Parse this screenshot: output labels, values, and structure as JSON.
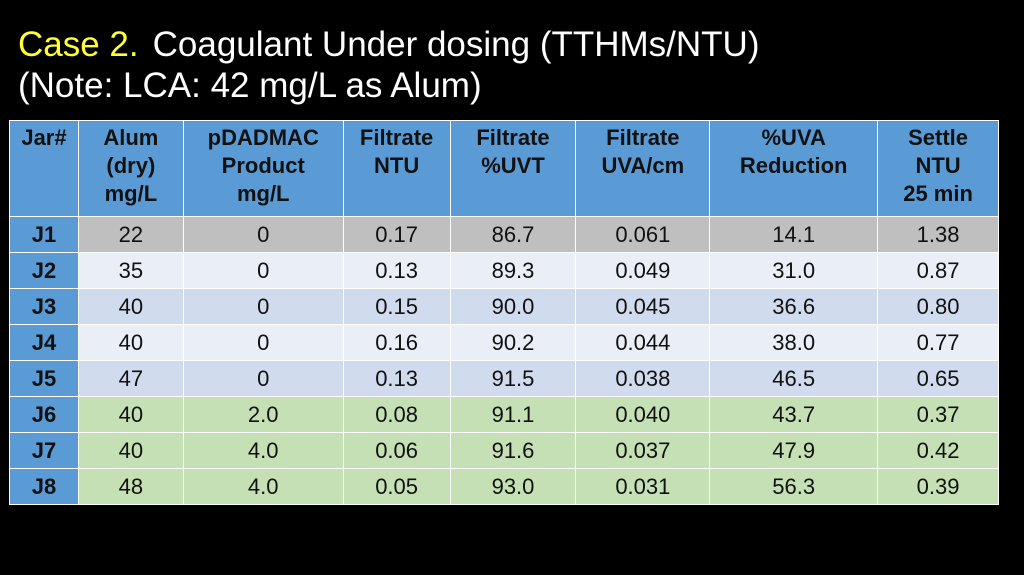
{
  "title": {
    "case": "Case 2.",
    "heading": "Coagulant Under dosing (TTHMs/NTU)",
    "note": "(Note: LCA: 42 mg/L as Alum)"
  },
  "table": {
    "header": [
      [
        "Jar#"
      ],
      [
        "Alum",
        "(dry)",
        "mg/L"
      ],
      [
        "pDADMAC",
        "Product",
        "mg/L"
      ],
      [
        "Filtrate",
        "NTU"
      ],
      [
        "Filtrate",
        "%UVT"
      ],
      [
        "Filtrate",
        "UVA/cm"
      ],
      [
        "%UVA",
        "Reduction"
      ],
      [
        "Settle",
        "NTU",
        "25 min"
      ]
    ],
    "rows": [
      [
        "J1",
        "22",
        "0",
        "0.17",
        "86.7",
        "0.061",
        "14.1",
        "1.38"
      ],
      [
        "J2",
        "35",
        "0",
        "0.13",
        "89.3",
        "0.049",
        "31.0",
        "0.87"
      ],
      [
        "J3",
        "40",
        "0",
        "0.15",
        "90.0",
        "0.045",
        "36.6",
        "0.80"
      ],
      [
        "J4",
        "40",
        "0",
        "0.16",
        "90.2",
        "0.044",
        "38.0",
        "0.77"
      ],
      [
        "J5",
        "47",
        "0",
        "0.13",
        "91.5",
        "0.038",
        "46.5",
        "0.65"
      ],
      [
        "J6",
        "40",
        "2.0",
        "0.08",
        "91.1",
        "0.040",
        "43.7",
        "0.37"
      ],
      [
        "J7",
        "40",
        "4.0",
        "0.06",
        "91.6",
        "0.037",
        "47.9",
        "0.42"
      ],
      [
        "J8",
        "48",
        "4.0",
        "0.05",
        "93.0",
        "0.031",
        "56.3",
        "0.39"
      ]
    ]
  }
}
